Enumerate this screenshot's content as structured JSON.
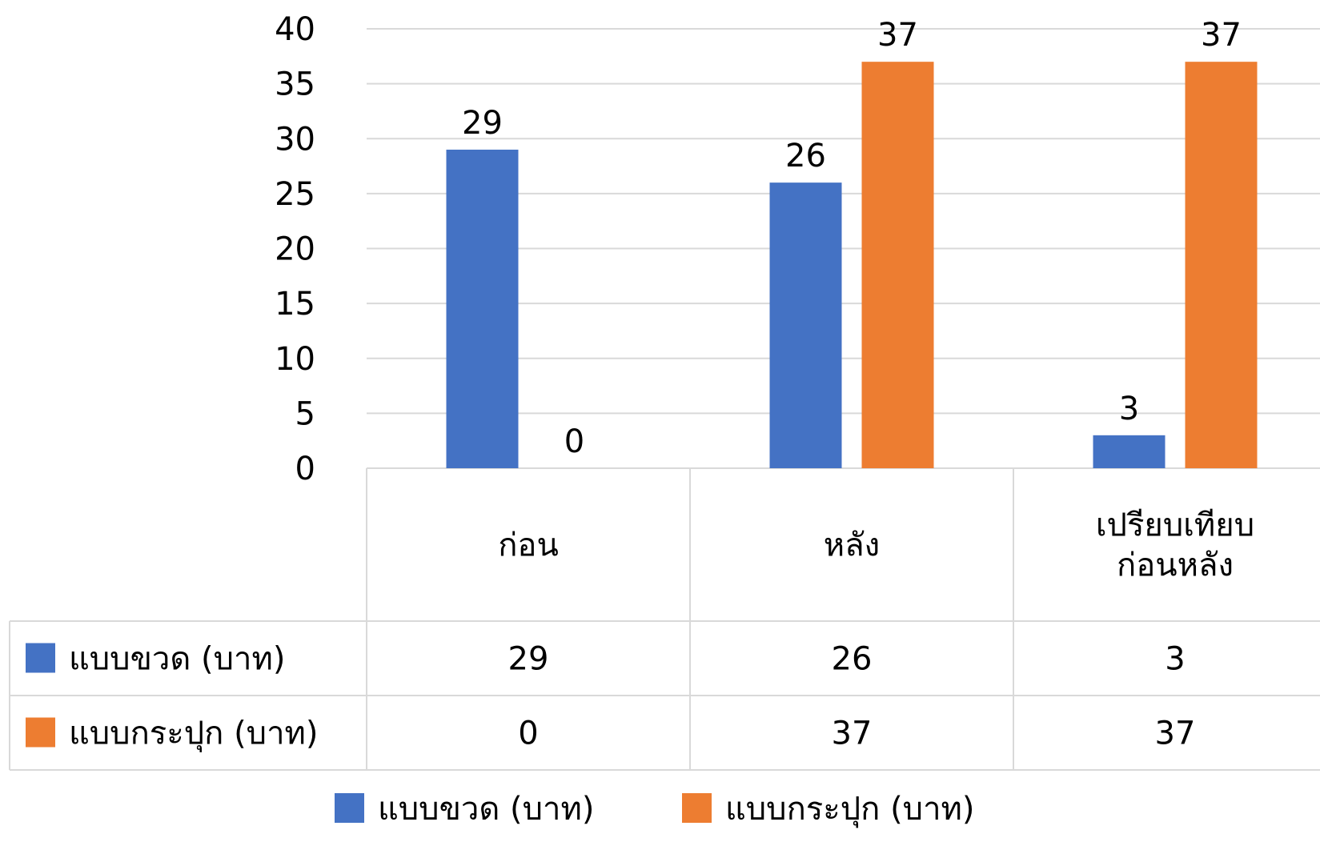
{
  "chart_data": {
    "type": "bar",
    "categories": [
      [
        "ก่อน"
      ],
      [
        "หลัง"
      ],
      [
        "เปรียบเทียบ",
        "ก่อนหลัง"
      ]
    ],
    "series": [
      {
        "name": "แบบขวด (บาท)",
        "values": [
          29,
          26,
          3
        ],
        "color": "#4472c4"
      },
      {
        "name": "แบบกระปุก (บาท)",
        "values": [
          0,
          37,
          37
        ],
        "color": "#ed7d31"
      }
    ],
    "ylim": [
      0,
      40
    ],
    "yticks": [
      0,
      5,
      10,
      15,
      20,
      25,
      30,
      35,
      40
    ],
    "grid": true,
    "data_labels": true,
    "data_table": true,
    "legend_position": "bottom",
    "gridline_color": "#d9d9d9"
  }
}
